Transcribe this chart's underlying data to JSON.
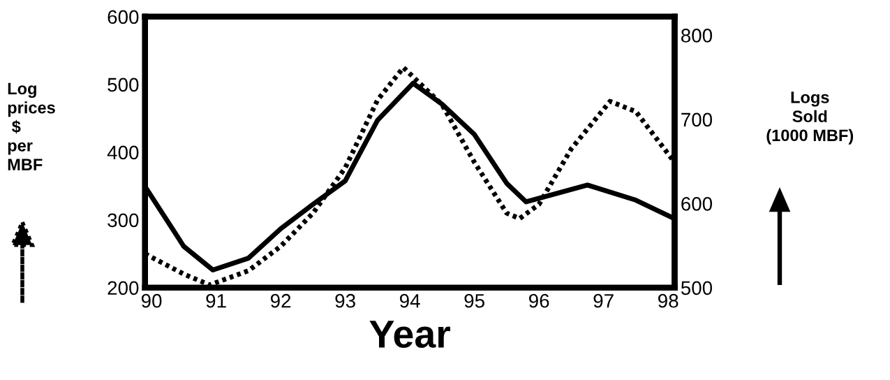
{
  "chart_data": {
    "type": "line",
    "xlabel": "Year",
    "ylabel": "Log\nprices\n $\nper\nMBF",
    "y2label": "Logs\nSold\n(1000 MBF)",
    "xlim": [
      89.9,
      98.1
    ],
    "xticks": [
      90,
      91,
      92,
      93,
      94,
      95,
      96,
      97,
      98
    ],
    "ylim": [
      200,
      600
    ],
    "yticks": [
      200,
      300,
      400,
      500,
      600
    ],
    "y2lim": [
      500,
      822
    ],
    "y2ticks": [
      500,
      600,
      700,
      800
    ],
    "grid": false,
    "legend": false,
    "marker": "none",
    "series": [
      {
        "color": "#000000",
        "line_style": "dotted",
        "x": [
          89.9,
          90.5,
          90.9,
          91.5,
          92,
          92.5,
          93,
          93.5,
          93.9,
          94.5,
          95,
          95.5,
          95.7,
          96,
          96.5,
          97.1,
          97.5,
          98.1
        ],
        "values": [
          250,
          220,
          204,
          225,
          261,
          310,
          377,
          477,
          525,
          470,
          385,
          310,
          302,
          323,
          405,
          475,
          460,
          385
        ]
      },
      {
        "color": "#000000",
        "line_style": "solid",
        "axis": "y2",
        "x": [
          89.9,
          90.5,
          90.95,
          91.5,
          92,
          92.5,
          93,
          93.5,
          94.05,
          94.5,
          95,
          95.5,
          95.8,
          96.75,
          97.5,
          98.1
        ],
        "values": [
          620,
          549,
          521,
          535,
          570,
          599,
          627,
          699,
          743,
          718,
          682,
          624,
          602,
          622,
          604,
          582
        ]
      }
    ]
  }
}
